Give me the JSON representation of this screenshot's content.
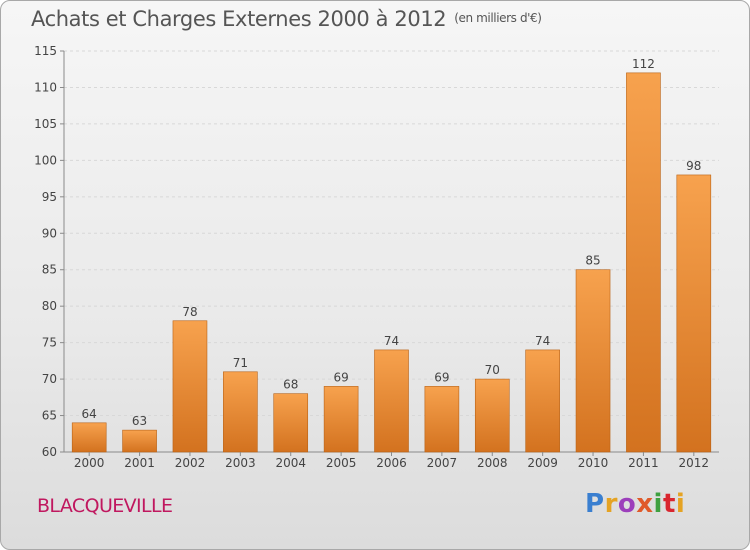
{
  "title": "Achats et Charges Externes 2000 à 2012",
  "unit": "(en milliers d'€)",
  "place": "BLACQUEVILLE",
  "logo": {
    "text": "Proxiti",
    "letter_colors": [
      "#3a7fd0",
      "#e5a323",
      "#9c3fbb",
      "#e05a2a",
      "#3fa040",
      "#d9262f",
      "#e5a323"
    ]
  },
  "colors": {
    "bar_top": "#f7a24e",
    "bar_bottom": "#d3721f",
    "bar_edge": "#b86216",
    "grid": "#d8d8d8",
    "axis": "#8a8a8a"
  },
  "chart_data": {
    "type": "bar",
    "title": "Achats et Charges Externes 2000 à 2012",
    "ylabel": "",
    "xlabel": "",
    "ylim": [
      60,
      115
    ],
    "yticks": [
      60,
      65,
      70,
      75,
      80,
      85,
      90,
      95,
      100,
      105,
      110,
      115
    ],
    "categories": [
      "2000",
      "2001",
      "2002",
      "2003",
      "2004",
      "2005",
      "2006",
      "2007",
      "2008",
      "2009",
      "2010",
      "2011",
      "2012"
    ],
    "values": [
      64,
      63,
      78,
      71,
      68,
      69,
      74,
      69,
      70,
      74,
      85,
      112,
      98
    ],
    "grid": "horizontal dashed"
  }
}
